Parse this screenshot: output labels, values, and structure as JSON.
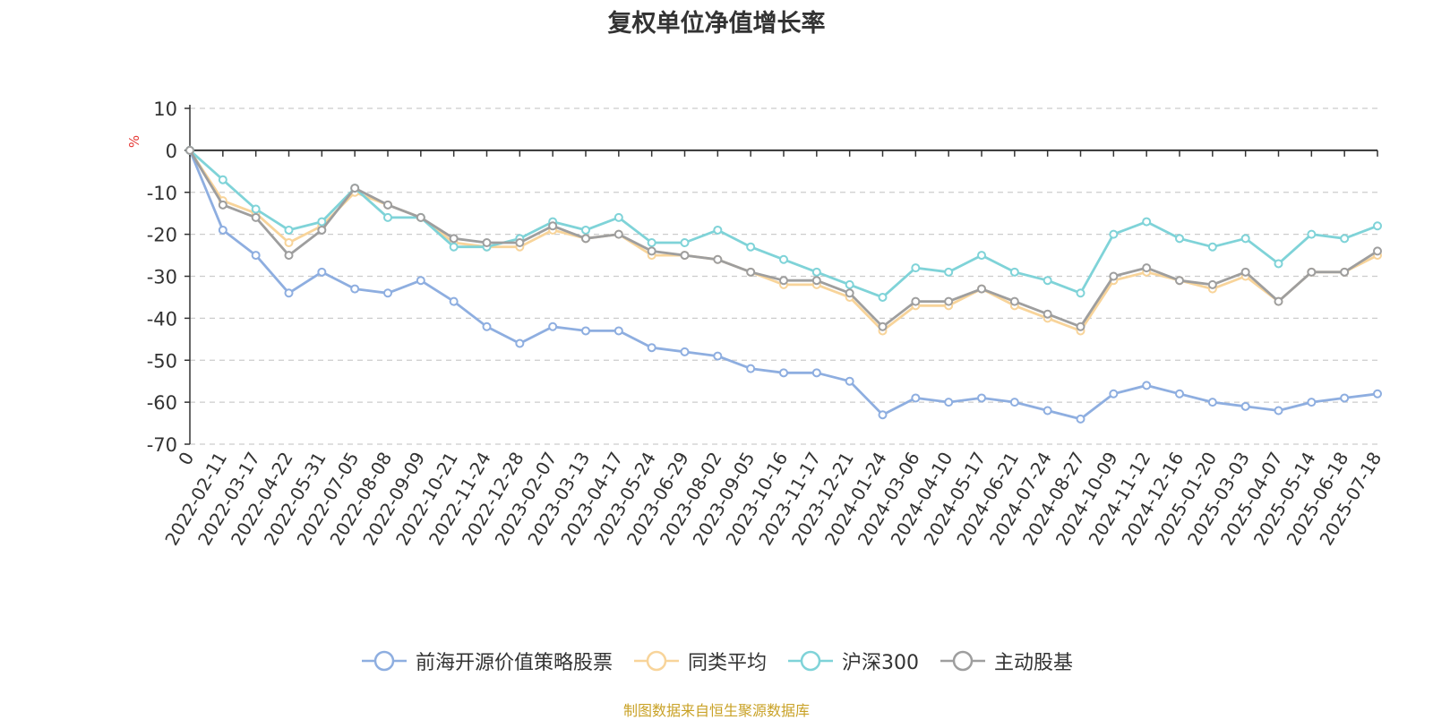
{
  "chart_data": {
    "type": "line",
    "title": "复权单位净值增长率",
    "ylabel": "%",
    "ylim": [
      -70,
      10
    ],
    "yticks": [
      10,
      0,
      -10,
      -20,
      -30,
      -40,
      -50,
      -60,
      -70
    ],
    "grid": true,
    "legend_position": "bottom-center",
    "x_ticks": [
      "0",
      "2022-02-11",
      "2022-03-17",
      "2022-04-22",
      "2022-05-31",
      "2022-07-05",
      "2022-08-08",
      "2022-09-09",
      "2022-10-21",
      "2022-11-24",
      "2022-12-28",
      "2023-02-07",
      "2023-03-13",
      "2023-04-17",
      "2023-05-24",
      "2023-06-29",
      "2023-08-02",
      "2023-09-05",
      "2023-10-16",
      "2023-11-17",
      "2023-12-21",
      "2024-01-24",
      "2024-03-06",
      "2024-04-10",
      "2024-05-17",
      "2024-06-21",
      "2024-07-24",
      "2024-08-27",
      "2024-10-09",
      "2024-11-12",
      "2024-12-16",
      "2025-01-20",
      "2025-03-03",
      "2025-04-07",
      "2025-05-14",
      "2025-06-18",
      "2025-07-18"
    ],
    "series": [
      {
        "name": "前海开源价值策略股票",
        "color": "#8eaee0",
        "values": [
          0,
          -19,
          -25,
          -34,
          -29,
          -33,
          -34,
          -31,
          -36,
          -42,
          -46,
          -42,
          -43,
          -43,
          -47,
          -48,
          -49,
          -52,
          -53,
          -53,
          -55,
          -63,
          -59,
          -60,
          -59,
          -60,
          -62,
          -64,
          -58,
          -56,
          -58,
          -60,
          -61,
          -62,
          -60,
          -59,
          -58
        ]
      },
      {
        "name": "同类平均",
        "color": "#f8d49a",
        "values": [
          0,
          -12,
          -15,
          -22,
          -18,
          -10,
          -13,
          -16,
          -22,
          -23,
          -23,
          -19,
          -21,
          -20,
          -25,
          -25,
          -26,
          -29,
          -32,
          -32,
          -35,
          -43,
          -37,
          -37,
          -33,
          -37,
          -40,
          -43,
          -31,
          -29,
          -31,
          -33,
          -30,
          -36,
          -29,
          -29,
          -25
        ]
      },
      {
        "name": "沪深300",
        "color": "#7fd3d8",
        "values": [
          0,
          -7,
          -14,
          -19,
          -17,
          -9,
          -16,
          -16,
          -23,
          -23,
          -21,
          -17,
          -19,
          -16,
          -22,
          -22,
          -19,
          -23,
          -26,
          -29,
          -32,
          -35,
          -28,
          -29,
          -25,
          -29,
          -31,
          -34,
          -20,
          -17,
          -21,
          -23,
          -21,
          -27,
          -20,
          -21,
          -18
        ]
      },
      {
        "name": "主动股基",
        "color": "#9e9e9e",
        "values": [
          0,
          -13,
          -16,
          -25,
          -19,
          -9,
          -13,
          -16,
          -21,
          -22,
          -22,
          -18,
          -21,
          -20,
          -24,
          -25,
          -26,
          -29,
          -31,
          -31,
          -34,
          -42,
          -36,
          -36,
          -33,
          -36,
          -39,
          -42,
          -30,
          -28,
          -31,
          -32,
          -29,
          -36,
          -29,
          -29,
          -24
        ]
      }
    ]
  },
  "source_note": "制图数据来自恒生聚源数据库"
}
